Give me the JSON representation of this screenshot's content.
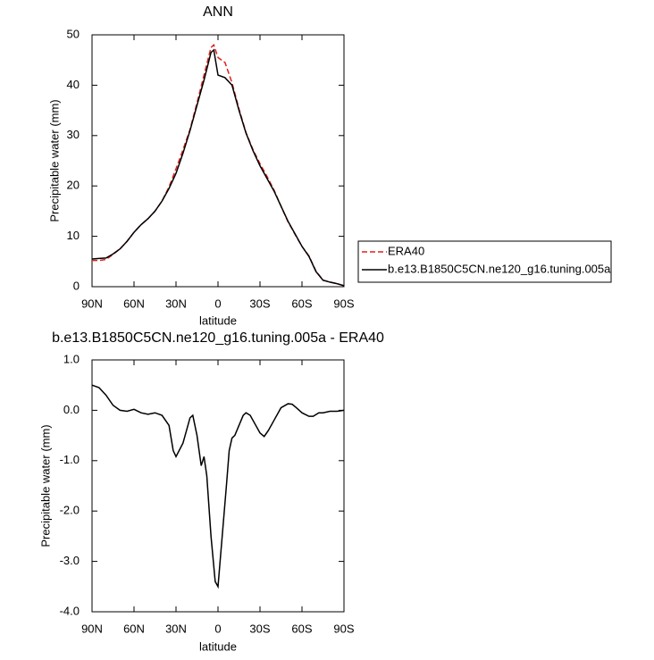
{
  "chart_data": [
    {
      "type": "line",
      "title": "ANN",
      "x_label": "latitude",
      "y_label": "Precipitable water (mm)",
      "x": [
        90,
        85,
        80,
        75,
        70,
        65,
        60,
        55,
        50,
        45,
        40,
        35,
        30,
        25,
        20,
        15,
        10,
        5,
        3,
        0,
        -5,
        -10,
        -15,
        -20,
        -25,
        -30,
        -35,
        -40,
        -45,
        -50,
        -55,
        -60,
        -65,
        -70,
        -75,
        -80,
        -85,
        -90
      ],
      "xlim": [
        90,
        -90
      ],
      "xticks": [
        {
          "value": 90,
          "label": "90N"
        },
        {
          "value": 60,
          "label": "60N"
        },
        {
          "value": 30,
          "label": "30N"
        },
        0,
        {
          "value": -30,
          "label": "30S"
        },
        {
          "value": -60,
          "label": "60S"
        },
        {
          "value": -90,
          "label": "90S"
        }
      ],
      "ylim": [
        0,
        50
      ],
      "yticks": [
        0,
        10,
        20,
        30,
        40,
        50
      ],
      "legend": "right",
      "series": [
        {
          "name": "ERA40",
          "color": "#e0201b",
          "dash": true,
          "values": [
            5.2,
            5.2,
            5.4,
            6.4,
            7.5,
            9,
            10.8,
            12.3,
            13.5,
            15,
            17,
            19.8,
            23.4,
            27.2,
            31.2,
            36.5,
            42,
            47.5,
            48,
            45.5,
            44.5,
            40.5,
            35.3,
            30.6,
            27.2,
            24.4,
            21.9,
            19.2,
            16,
            12.9,
            10.4,
            8,
            6.1,
            3.1,
            1.3,
            0.9,
            0.6,
            0.2
          ]
        },
        {
          "name": "b.e13.B1850C5CN.ne120_g16.tuning.005a",
          "color": "#000000",
          "dash": false,
          "values": [
            5.5,
            5.6,
            5.7,
            6.5,
            7.5,
            9,
            10.8,
            12.3,
            13.5,
            15,
            17,
            19.5,
            22.5,
            26.5,
            31,
            36,
            41,
            46.5,
            47,
            42,
            41.5,
            40,
            35,
            30.5,
            27,
            24,
            21.5,
            19,
            16,
            13,
            10.5,
            8,
            6,
            3,
            1.3,
            0.9,
            0.6,
            0.2
          ]
        }
      ]
    },
    {
      "type": "line",
      "title": "b.e13.B1850C5CN.ne120_g16.tuning.005a - ERA40",
      "x_label": "latitude",
      "y_label": "Precipitable water (mm)",
      "x": [
        90,
        85,
        80,
        75,
        70,
        65,
        60,
        55,
        50,
        45,
        40,
        35,
        32,
        30,
        25,
        20,
        18,
        15,
        12,
        10,
        8,
        5,
        2,
        0,
        -3,
        -6,
        -8,
        -10,
        -12,
        -15,
        -18,
        -20,
        -23,
        -27,
        -30,
        -33,
        -36,
        -40,
        -45,
        -50,
        -53,
        -56,
        -60,
        -65,
        -68,
        -72,
        -75,
        -80,
        -85,
        -90
      ],
      "xlim": [
        90,
        -90
      ],
      "xticks": [
        {
          "value": 90,
          "label": "90N"
        },
        {
          "value": 60,
          "label": "60N"
        },
        {
          "value": 30,
          "label": "30N"
        },
        0,
        {
          "value": -30,
          "label": "30S"
        },
        {
          "value": -60,
          "label": "60S"
        },
        {
          "value": -90,
          "label": "90S"
        }
      ],
      "ylim": [
        -4,
        1
      ],
      "yticks": [
        {
          "value": -4,
          "label": "-4.0"
        },
        {
          "value": -3,
          "label": "-3.0"
        },
        {
          "value": -2,
          "label": "-2.0"
        },
        {
          "value": -1,
          "label": "-1.0"
        },
        {
          "value": 0,
          "label": "0.0"
        },
        {
          "value": 1,
          "label": "1.0"
        }
      ],
      "series": [
        {
          "color": "#000000",
          "dash": false,
          "values": [
            0.5,
            0.45,
            0.3,
            0.1,
            0,
            -0.02,
            0.02,
            -0.05,
            -0.08,
            -0.05,
            -0.1,
            -0.3,
            -0.8,
            -0.92,
            -0.65,
            -0.15,
            -0.1,
            -0.5,
            -1.1,
            -0.92,
            -1.3,
            -2.5,
            -3.4,
            -3.5,
            -2.5,
            -1.5,
            -0.8,
            -0.55,
            -0.5,
            -0.3,
            -0.1,
            -0.05,
            -0.1,
            -0.3,
            -0.45,
            -0.52,
            -0.4,
            -0.2,
            0.05,
            0.13,
            0.12,
            0.05,
            -0.05,
            -0.12,
            -0.12,
            -0.05,
            -0.05,
            -0.02,
            -0.02,
            0
          ]
        }
      ]
    }
  ]
}
